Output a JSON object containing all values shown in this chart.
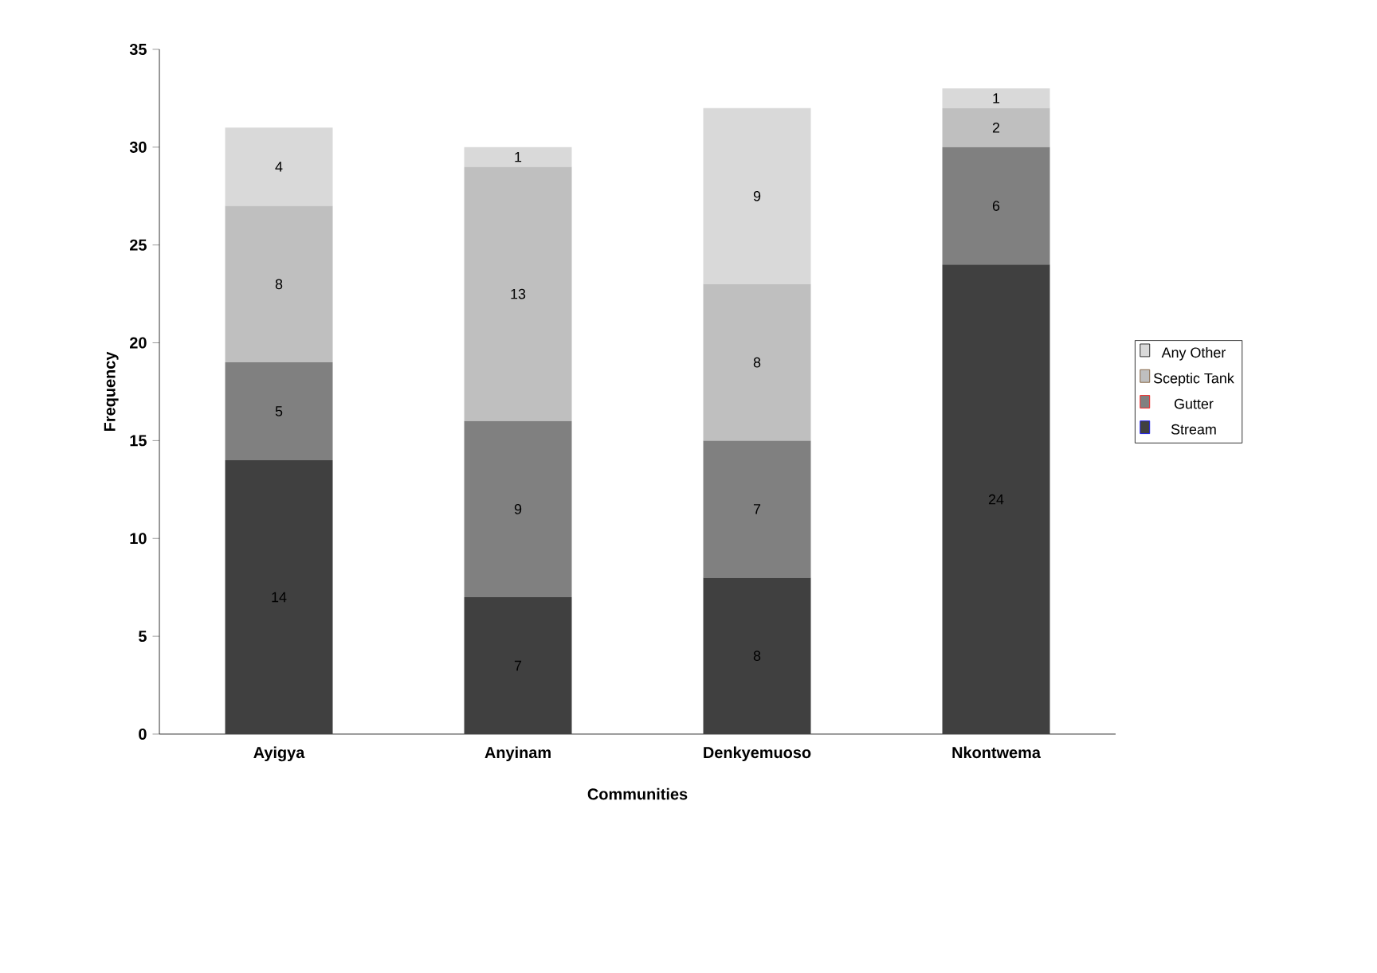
{
  "chart_data": {
    "type": "bar",
    "stacked": true,
    "xlabel": "Communities",
    "ylabel": "Frequency",
    "categories": [
      "Ayigya",
      "Anyinam",
      "Denkyemuoso",
      "Nkontwema"
    ],
    "series": [
      {
        "name": "Stream",
        "color": "#404040",
        "values": [
          14,
          7,
          8,
          24
        ]
      },
      {
        "name": "Gutter",
        "color": "#808080",
        "values": [
          5,
          9,
          7,
          6
        ]
      },
      {
        "name": "Sceptic Tank",
        "color": "#bfbfbf",
        "values": [
          8,
          13,
          8,
          2
        ]
      },
      {
        "name": "Any Other",
        "color": "#d9d9d9",
        "values": [
          4,
          1,
          9,
          1
        ]
      }
    ],
    "ylim": [
      0,
      35
    ],
    "yticks": [
      0,
      5,
      10,
      15,
      20,
      25,
      30,
      35
    ],
    "data_labels": true,
    "legend": "right",
    "grid": false
  }
}
